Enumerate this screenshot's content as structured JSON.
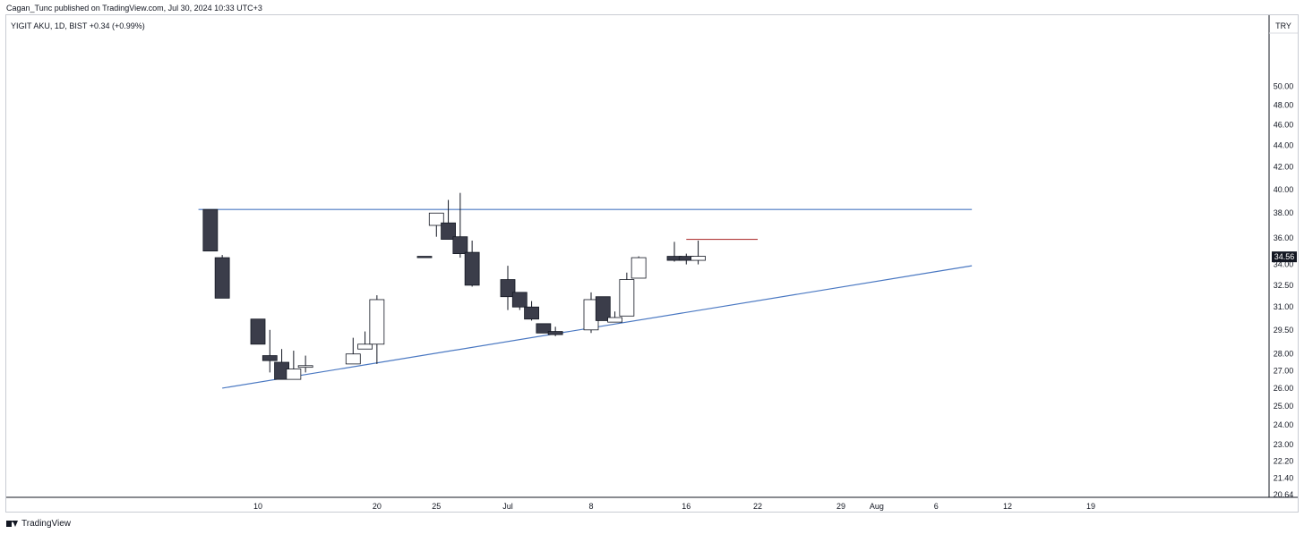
{
  "header": {
    "published": "Cagan_Tunc published on TradingView.com, Jul 30, 2024 10:33 UTC+3"
  },
  "footer": {
    "brand": "TradingView"
  },
  "colors": {
    "bear": "#3b3d4a",
    "bull_fill": "#ffffff",
    "outline": "#131722",
    "trendline": "#4a78c2",
    "resistance_short": "#b23a3a",
    "grid_border": "#c9ccd3"
  },
  "chart_data": {
    "type": "candlestick",
    "symbol": "YIGIT AKU, 1D, BIST",
    "change": "+0.34 (+0.99%)",
    "currency": "TRY",
    "last_price_label": "34.56",
    "y_scale": "log",
    "ylim": [
      20.64,
      54.0
    ],
    "y_ticks": [
      "50.00",
      "48.00",
      "46.00",
      "44.00",
      "42.00",
      "40.00",
      "38.00",
      "36.00",
      "34.00",
      "32.50",
      "31.00",
      "29.50",
      "28.00",
      "27.00",
      "26.00",
      "25.00",
      "24.00",
      "23.00",
      "22.20",
      "21.40",
      "20.64"
    ],
    "x_ticks": [
      {
        "label": "10",
        "date": "2024-06-10"
      },
      {
        "label": "20",
        "date": "2024-06-20"
      },
      {
        "label": "25",
        "date": "2024-06-25"
      },
      {
        "label": "Jul",
        "date": "2024-07-01"
      },
      {
        "label": "8",
        "date": "2024-07-08"
      },
      {
        "label": "16",
        "date": "2024-07-16"
      },
      {
        "label": "22",
        "date": "2024-07-22"
      },
      {
        "label": "29",
        "date": "2024-07-29"
      },
      {
        "label": "Aug",
        "date": "2024-08-01"
      },
      {
        "label": "6",
        "date": "2024-08-06"
      },
      {
        "label": "12",
        "date": "2024-08-12"
      },
      {
        "label": "19",
        "date": "2024-08-19"
      }
    ],
    "candles": [
      {
        "date": "2024-06-06",
        "open": 38.3,
        "high": 38.3,
        "low": 35.0,
        "close": 35.0
      },
      {
        "date": "2024-06-07",
        "open": 34.5,
        "high": 34.7,
        "low": 31.6,
        "close": 31.6
      },
      {
        "date": "2024-06-10",
        "open": 30.2,
        "high": 30.2,
        "low": 28.6,
        "close": 28.6
      },
      {
        "date": "2024-06-11",
        "open": 27.9,
        "high": 29.5,
        "low": 26.9,
        "close": 27.6
      },
      {
        "date": "2024-06-12",
        "open": 27.5,
        "high": 28.3,
        "low": 26.5,
        "close": 26.5
      },
      {
        "date": "2024-06-13",
        "open": 26.5,
        "high": 28.2,
        "low": 26.5,
        "close": 27.1
      },
      {
        "date": "2024-06-14",
        "open": 27.2,
        "high": 27.9,
        "low": 26.9,
        "close": 27.3
      },
      {
        "date": "2024-06-18",
        "open": 27.4,
        "high": 29.0,
        "low": 27.4,
        "close": 28.0
      },
      {
        "date": "2024-06-19",
        "open": 28.3,
        "high": 29.4,
        "low": 28.3,
        "close": 28.6
      },
      {
        "date": "2024-06-20",
        "open": 28.6,
        "high": 31.8,
        "low": 27.4,
        "close": 31.5
      },
      {
        "date": "2024-06-24",
        "open": 34.6,
        "high": 34.6,
        "low": 34.5,
        "close": 34.5
      },
      {
        "date": "2024-06-25",
        "open": 37.0,
        "high": 38.0,
        "low": 36.1,
        "close": 38.0
      },
      {
        "date": "2024-06-26",
        "open": 37.2,
        "high": 39.1,
        "low": 35.9,
        "close": 35.9
      },
      {
        "date": "2024-06-27",
        "open": 36.1,
        "high": 39.7,
        "low": 34.5,
        "close": 34.8
      },
      {
        "date": "2024-06-28",
        "open": 34.9,
        "high": 35.8,
        "low": 32.4,
        "close": 32.5
      },
      {
        "date": "2024-07-01",
        "open": 32.9,
        "high": 33.9,
        "low": 30.8,
        "close": 31.7
      },
      {
        "date": "2024-07-02",
        "open": 32.0,
        "high": 32.0,
        "low": 30.8,
        "close": 31.0
      },
      {
        "date": "2024-07-03",
        "open": 31.0,
        "high": 31.4,
        "low": 30.1,
        "close": 30.2
      },
      {
        "date": "2024-07-04",
        "open": 29.9,
        "high": 29.9,
        "low": 29.3,
        "close": 29.3
      },
      {
        "date": "2024-07-05",
        "open": 29.4,
        "high": 29.7,
        "low": 29.1,
        "close": 29.2
      },
      {
        "date": "2024-07-08",
        "open": 29.5,
        "high": 32.0,
        "low": 29.3,
        "close": 31.5
      },
      {
        "date": "2024-07-09",
        "open": 31.7,
        "high": 31.7,
        "low": 30.1,
        "close": 30.1
      },
      {
        "date": "2024-07-10",
        "open": 30.0,
        "high": 30.7,
        "low": 30.0,
        "close": 30.3
      },
      {
        "date": "2024-07-11",
        "open": 30.4,
        "high": 33.4,
        "low": 30.4,
        "close": 32.9
      },
      {
        "date": "2024-07-12",
        "open": 33.0,
        "high": 34.6,
        "low": 33.0,
        "close": 34.5
      },
      {
        "date": "2024-07-15",
        "open": 34.6,
        "high": 35.7,
        "low": 34.2,
        "close": 34.3
      },
      {
        "date": "2024-07-16",
        "open": 34.6,
        "high": 34.8,
        "low": 34.0,
        "close": 34.3
      },
      {
        "date": "2024-07-17",
        "open": 34.3,
        "high": 35.8,
        "low": 34.0,
        "close": 34.6
      }
    ],
    "lines": [
      {
        "name": "horizontal resistance",
        "color": "#4a78c2",
        "x1": "2024-06-05",
        "y1": 38.3,
        "x2": "2024-08-09",
        "y2": 38.3
      },
      {
        "name": "rising support",
        "color": "#4a78c2",
        "x1": "2024-06-07",
        "y1": 26.0,
        "x2": "2024-08-09",
        "y2": 33.9
      },
      {
        "name": "short resistance",
        "color": "#b23a3a",
        "x1": "2024-07-16",
        "y1": 35.9,
        "x2": "2024-07-22",
        "y2": 35.9
      }
    ]
  }
}
